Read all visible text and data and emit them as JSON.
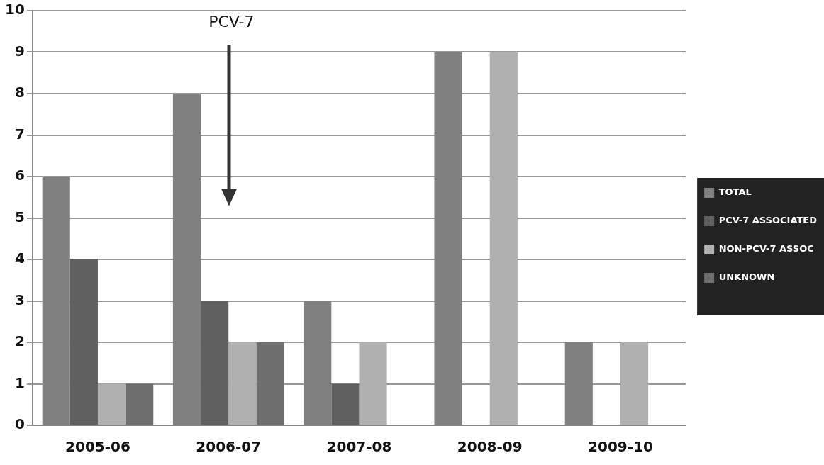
{
  "chart_data": {
    "type": "bar",
    "categories": [
      "2005-06",
      "2006-07",
      "2007-08",
      "2008-09",
      "2009-10"
    ],
    "series": [
      {
        "name": "TOTAL",
        "color": "#808080",
        "values": [
          6,
          8,
          3,
          9,
          2
        ]
      },
      {
        "name": "PCV-7 ASSOCIATED",
        "color": "#606060",
        "values": [
          4,
          3,
          1,
          0,
          0
        ]
      },
      {
        "name": "NON-PCV-7 ASSOC",
        "color": "#b0b0b0",
        "values": [
          1,
          2,
          2,
          9,
          2
        ]
      },
      {
        "name": "UNKNOWN",
        "color": "#6e6e6e",
        "values": [
          1,
          2,
          0,
          0,
          0
        ]
      }
    ],
    "ylim": [
      0,
      10
    ],
    "yticks": [
      0,
      1,
      2,
      3,
      4,
      5,
      6,
      7,
      8,
      9,
      10
    ],
    "grid": "y",
    "legend": "right",
    "annotations": [
      "PCV-7"
    ]
  }
}
